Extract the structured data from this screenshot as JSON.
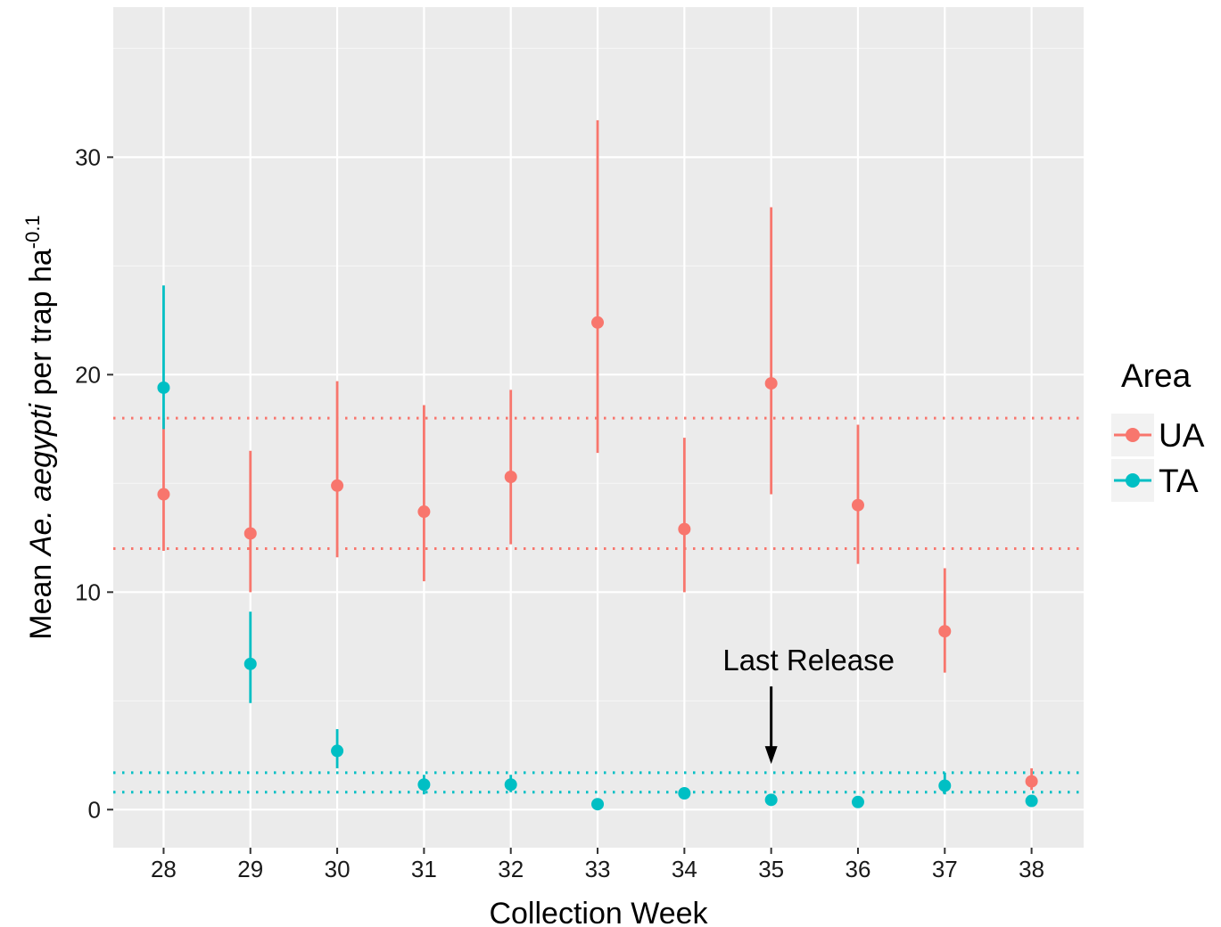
{
  "chart_data": {
    "type": "scatter",
    "xlabel": "Collection Week",
    "ylabel_parts": [
      "Mean ",
      "Ae. aegypti",
      " per trap ha",
      "-0.1"
    ],
    "x_ticks": [
      28,
      29,
      30,
      31,
      32,
      33,
      34,
      35,
      36,
      37,
      38
    ],
    "y_ticks": [
      0,
      10,
      20,
      30
    ],
    "xlim": [
      27.42,
      38.6
    ],
    "ylim": [
      -1.75,
      36.9
    ],
    "grid": true,
    "background": "#ebebeb",
    "legend": {
      "title": "Area",
      "position": "right",
      "entries": [
        {
          "label": "UA",
          "color": "#f8766d"
        },
        {
          "label": "TA",
          "color": "#00bfc4"
        }
      ]
    },
    "series": [
      {
        "name": "UA",
        "color": "#f8766d",
        "x": [
          28,
          29,
          30,
          31,
          32,
          33,
          34,
          35,
          36,
          37,
          38
        ],
        "y": [
          14.5,
          12.7,
          14.9,
          13.7,
          15.3,
          22.4,
          12.9,
          19.6,
          14.0,
          8.2,
          1.3
        ],
        "ymin": [
          11.9,
          10.0,
          11.6,
          10.5,
          12.2,
          16.4,
          10.0,
          14.5,
          11.3,
          6.3,
          0.9
        ],
        "ymax": [
          18.0,
          16.5,
          19.7,
          18.6,
          19.3,
          31.7,
          17.1,
          27.7,
          17.7,
          11.1,
          1.9
        ]
      },
      {
        "name": "TA",
        "color": "#00bfc4",
        "x": [
          28,
          29,
          30,
          31,
          32,
          33,
          34,
          35,
          36,
          37,
          38
        ],
        "y": [
          19.4,
          6.7,
          2.7,
          1.15,
          1.15,
          0.25,
          0.75,
          0.45,
          0.35,
          1.1,
          0.4
        ],
        "ymin": [
          17.5,
          4.9,
          1.9,
          0.7,
          0.8,
          0.1,
          0.5,
          0.3,
          0.2,
          0.7,
          0.2
        ],
        "ymax": [
          24.1,
          9.1,
          3.7,
          1.6,
          1.6,
          0.4,
          1.0,
          0.7,
          0.5,
          1.7,
          0.6
        ]
      }
    ],
    "reference_lines": [
      {
        "y": 18.0,
        "color": "#f8766d",
        "style": "dotted"
      },
      {
        "y": 12.0,
        "color": "#f8766d",
        "style": "dotted"
      },
      {
        "y": 1.7,
        "color": "#00bfc4",
        "style": "dotted"
      },
      {
        "y": 0.8,
        "color": "#00bfc4",
        "style": "dotted"
      }
    ],
    "annotation": {
      "text": "Last Release",
      "arrow_x": 35,
      "arrow_y_top": 5.5,
      "arrow_y_bottom": 2.1
    }
  }
}
